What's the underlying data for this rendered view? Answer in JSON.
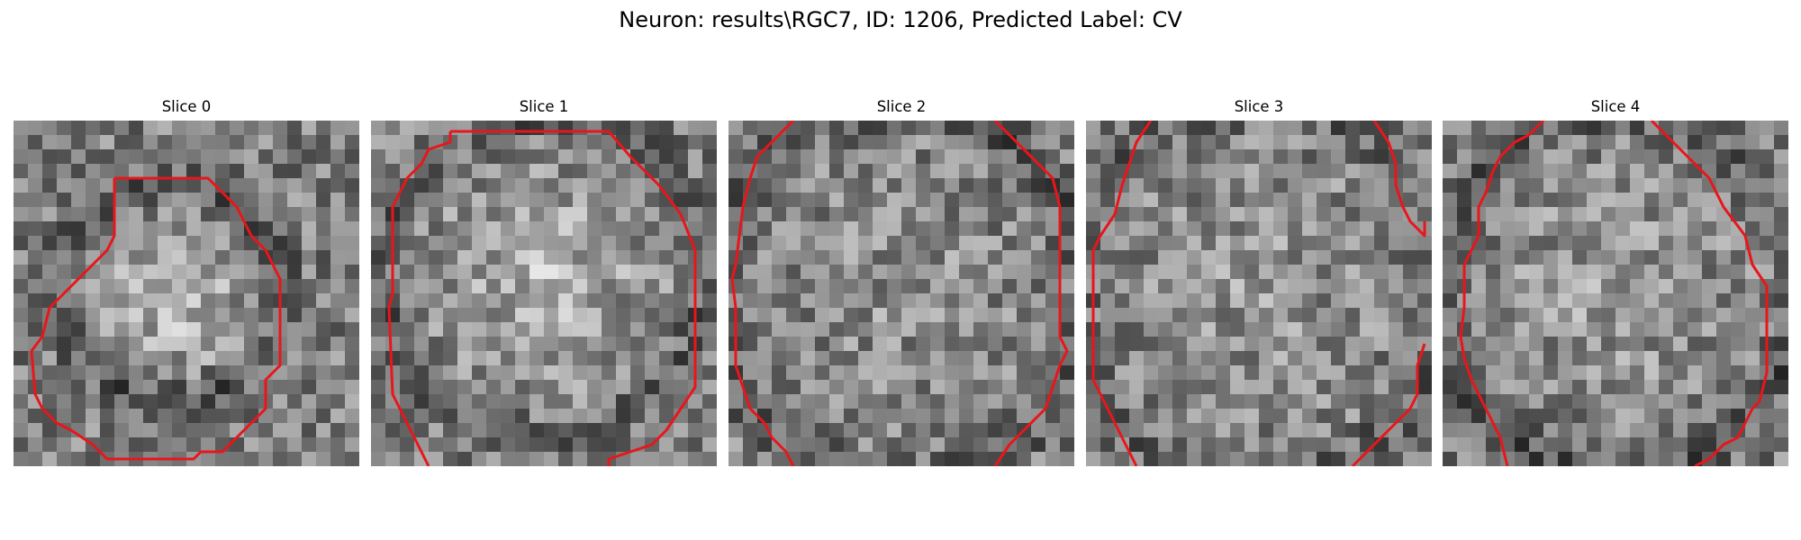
{
  "figure": {
    "title": "Neuron: results\\RGC7, ID: 1206, Predicted Label: CV",
    "contour_color": "#e8161b"
  },
  "panels": [
    {
      "title": "Slice 0"
    },
    {
      "title": "Slice 1"
    },
    {
      "title": "Slice 2"
    },
    {
      "title": "Slice 3"
    },
    {
      "title": "Slice 4"
    }
  ]
}
